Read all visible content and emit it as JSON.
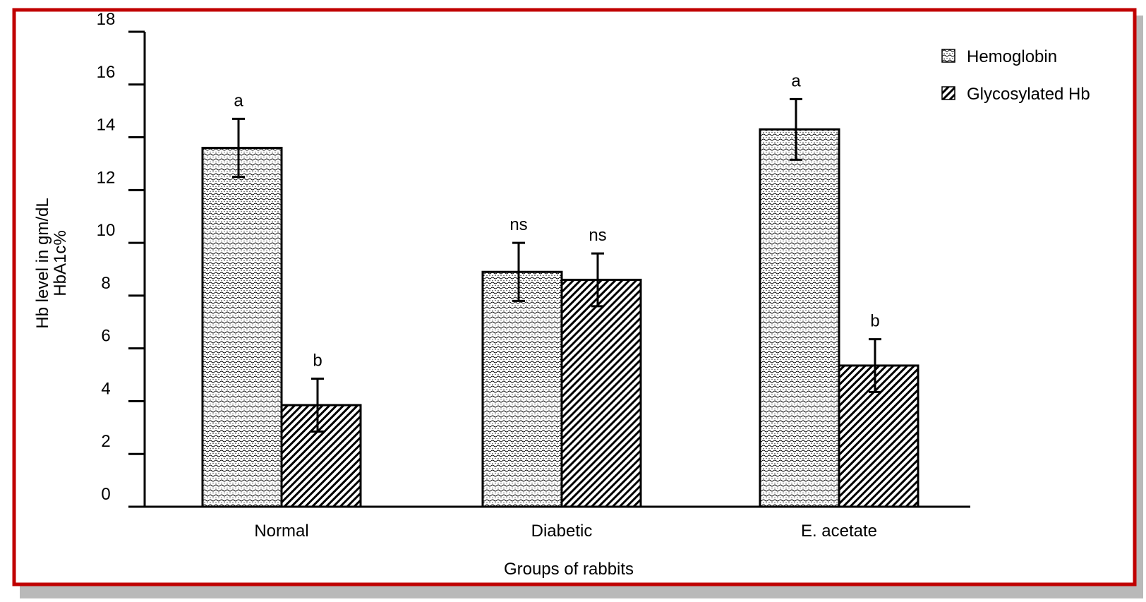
{
  "chart_data": {
    "type": "bar",
    "categories": [
      "Normal",
      "Diabetic",
      "E. acetate"
    ],
    "series": [
      {
        "name": "Hemoglobin",
        "pattern": "wavy-dots",
        "values": [
          13.6,
          8.9,
          14.3
        ],
        "errors": [
          1.1,
          1.1,
          1.15
        ],
        "annotations": [
          "a",
          "ns",
          "a"
        ]
      },
      {
        "name": "Glycosylated Hb",
        "pattern": "diagonal-hatch",
        "values": [
          3.85,
          8.6,
          5.35
        ],
        "errors": [
          1.0,
          1.0,
          1.0
        ],
        "annotations": [
          "b",
          "ns",
          "b"
        ]
      }
    ],
    "xlabel": "Groups  of rabbits",
    "ylabel_lines": [
      "Hb level in gm/dL",
      "HbA1c%"
    ],
    "ylim": [
      0,
      18
    ],
    "yticks": [
      0,
      2,
      4,
      6,
      8,
      10,
      12,
      14,
      16,
      18
    ],
    "legend_position": "top-right",
    "grid": false,
    "colors": {
      "frame_border": "#c00000",
      "frame_shadow": "#b9b9b9",
      "ink": "#000000",
      "bar_fill": "#ffffff"
    }
  }
}
